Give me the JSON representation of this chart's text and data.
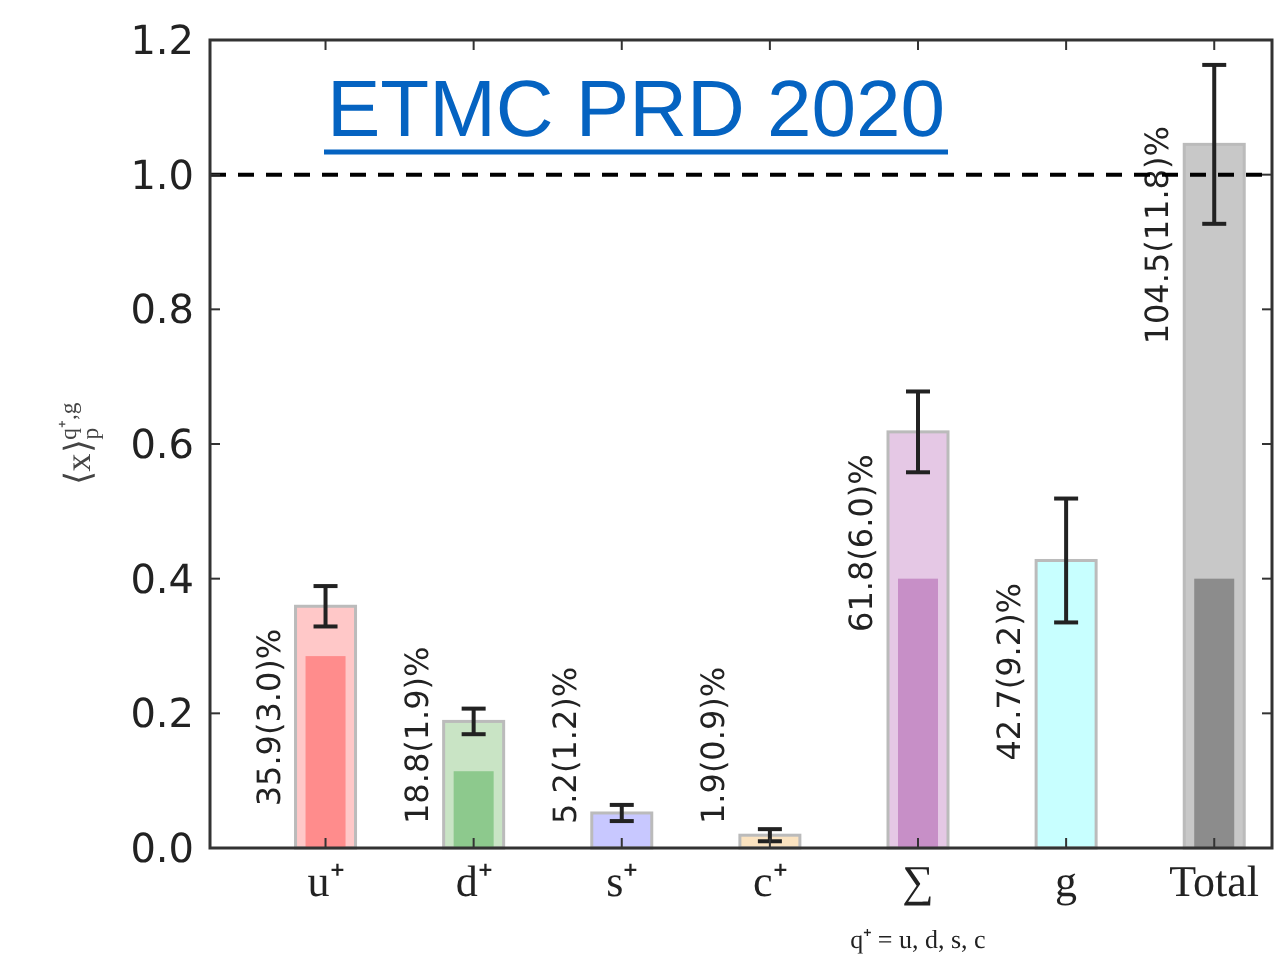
{
  "chart_data": {
    "type": "bar",
    "title": "ETMC PRD 2020",
    "ylabel": "⟨x⟩$_{p}$$^{q⁺,g}$",
    "categories": [
      "u⁺",
      "d⁺",
      "s⁺",
      "c⁺",
      "∑\nq⁺ = u, d, s, c",
      "g",
      "Total"
    ],
    "series": [
      {
        "colors": [
          "#ffc8c8",
          "#c9e4c5",
          "#c8c8ff",
          "#fbe3c0",
          "#e5c8e5",
          "#c8ffff",
          "#c8c8c8"
        ],
        "values": [
          0.359,
          0.188,
          0.052,
          0.019,
          0.618,
          0.427,
          1.045
        ],
        "errors": [
          0.03,
          0.019,
          0.012,
          0.009,
          0.06,
          0.092,
          0.118
        ]
      },
      {
        "colors": [
          "#ff8c8c",
          "#8dc98d",
          null,
          null,
          "#c78fc7",
          null,
          "#8c8c8c"
        ],
        "values": [
          0.285,
          0.114,
          null,
          null,
          0.4,
          null,
          0.4
        ]
      }
    ],
    "ylim": [
      0,
      1.2
    ],
    "yticks": [
      {
        "value": 0,
        "label": "0.0"
      },
      0.2,
      0.4,
      0.6,
      0.8,
      {
        "value": 1,
        "label": "1.0"
      },
      1.2
    ],
    "ref_lines": [
      {
        "axis": "y",
        "value": 1,
        "line_style": "dashed",
        "color": "#000000"
      }
    ],
    "annotations": [
      {
        "text": "35.9(3.0)%",
        "x": "u⁺",
        "y": 0.359
      },
      {
        "text": "18.8(1.9)%",
        "x": "d⁺",
        "y": 0.188
      },
      {
        "text": "5.2(1.2)%",
        "x": "s⁺",
        "y": 0.052
      },
      {
        "text": "1.9(0.9)%",
        "x": "c⁺",
        "y": 0.019
      },
      {
        "text": "61.8(6.0)%",
        "x": "∑\nq⁺ = u, d, s, c",
        "y": 0.618
      },
      {
        "text": "42.7(9.2)%",
        "x": "g",
        "y": 0.427
      },
      {
        "text": "104.5(11.8)%",
        "x": "Total",
        "y": 1.045
      }
    ],
    "grid": false
  }
}
